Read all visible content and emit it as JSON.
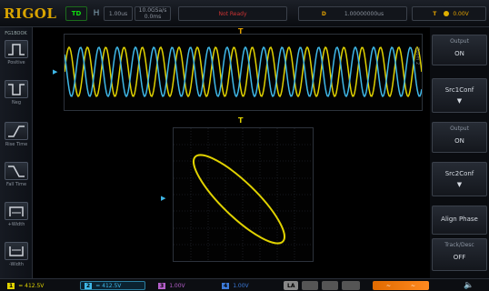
{
  "topbar": {
    "logo": "RIGOL",
    "status": "TD",
    "h_icon": "H",
    "timebase": "1.00us",
    "sample_rate": "10.0GSa/s",
    "memory_depth": "0.0ms",
    "mode": "Not Ready",
    "trigger_label": "D",
    "trigger_time": "1.00000000us",
    "trigger_src": "T",
    "trigger_level": "0.00V"
  },
  "sidebar": {
    "title": "FG1BOOK",
    "items": [
      {
        "label": "Positive",
        "icon": "positive-pulse-icon"
      },
      {
        "label": "Neg",
        "icon": "negative-pulse-icon"
      },
      {
        "label": "Rise Time",
        "icon": "rise-time-icon"
      },
      {
        "label": "Fall Time",
        "icon": "fall-time-icon"
      },
      {
        "label": "+Width",
        "icon": "positive-width-icon"
      },
      {
        "label": "-Width",
        "icon": "negative-width-icon"
      }
    ]
  },
  "waveform": {
    "ch1_marker": "▶",
    "trigger_marker": "T",
    "side_label": "Zoom 2"
  },
  "xy": {
    "marker_top": "T",
    "marker_left": "▶"
  },
  "menu": {
    "items": [
      {
        "label": "Output",
        "value": "ON"
      },
      {
        "label": "Src1Conf",
        "value": "▼"
      },
      {
        "label": "Output",
        "value": "ON"
      },
      {
        "label": "Src2Conf",
        "value": "▼"
      },
      {
        "label": "",
        "value": "Align Phase"
      },
      {
        "label": "Track/Desc",
        "value": "OFF"
      }
    ]
  },
  "bottombar": {
    "ch1": {
      "num": "1",
      "value": "= 412.5V"
    },
    "ch2": {
      "num": "2",
      "value": "= 412.5V"
    },
    "ch3": {
      "num": "3",
      "value": "1.00V"
    },
    "ch4": {
      "num": "4",
      "value": "1.00V"
    },
    "la": "LA",
    "src1": "~",
    "src2": "~"
  },
  "colors": {
    "ch1": "#e0d200",
    "ch2": "#3fb8e8",
    "accent": "#e0a000"
  }
}
